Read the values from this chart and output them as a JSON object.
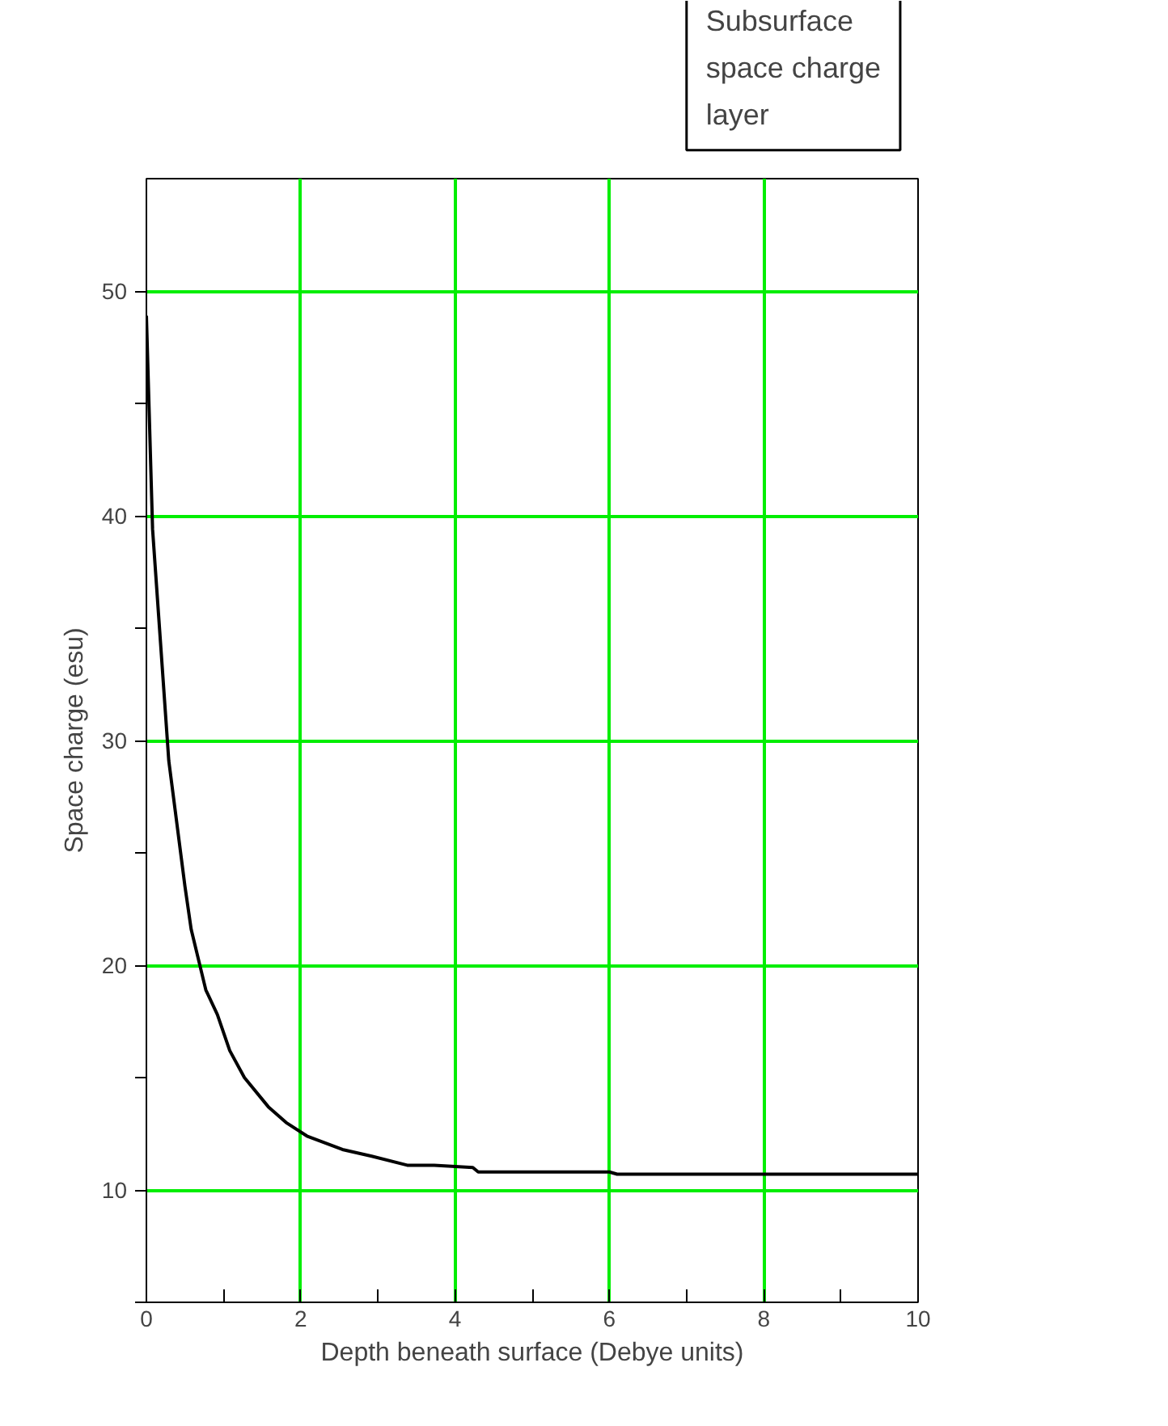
{
  "chart_data": {
    "type": "line",
    "xlabel": "Depth beneath surface (Debye units)",
    "ylabel": "Space charge (esu)",
    "annotations": [
      "Subsurface space charge layer"
    ],
    "x": [
      0,
      0.08,
      0.29,
      0.5,
      0.58,
      0.77,
      0.92,
      1.08,
      1.27,
      1.58,
      1.81,
      2.08,
      2.54,
      2.92,
      3.38,
      3.73,
      4.23,
      4.3,
      6.0,
      6.1,
      10
    ],
    "series": [
      {
        "color": "#000000",
        "values": [
          48.9,
          39.4,
          29.1,
          23.5,
          21.6,
          18.9,
          17.8,
          16.2,
          15.0,
          13.7,
          13.0,
          12.4,
          11.8,
          11.5,
          11.1,
          11.1,
          11.0,
          10.8,
          10.8,
          10.7,
          10.7
        ]
      }
    ],
    "xlim": [
      0,
      10
    ],
    "ylim": [
      5,
      55
    ],
    "xticks": [
      0,
      {
        "value": 1,
        "label": null
      },
      2,
      {
        "value": 3,
        "label": null
      },
      4,
      {
        "value": 5,
        "label": null
      },
      6,
      {
        "value": 7,
        "label": null
      },
      8,
      {
        "value": 9,
        "label": null
      },
      10
    ],
    "yticks": [
      {
        "value": 5,
        "label": null
      },
      10,
      {
        "value": 15,
        "label": null
      },
      20,
      {
        "value": 25,
        "label": null
      },
      30,
      {
        "value": 35,
        "label": null
      },
      40,
      {
        "value": 45,
        "label": null
      },
      50
    ],
    "grid": true,
    "line_style": "solid"
  }
}
